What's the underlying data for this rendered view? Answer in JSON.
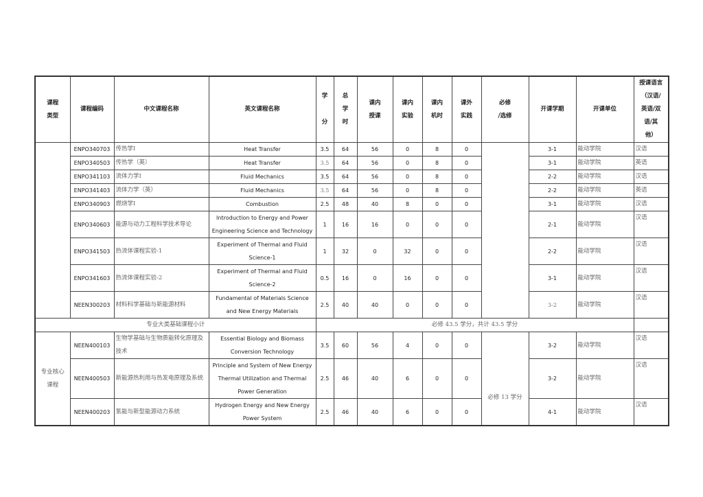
{
  "headers": {
    "type": [
      "课程",
      "类型"
    ],
    "code": "课程编码",
    "zh_name": "中文课程名称",
    "en_name": "英文课程名称",
    "credit": [
      "学",
      "分"
    ],
    "total_hours": [
      "总",
      "学",
      "时"
    ],
    "lecture": [
      "课内",
      "授课"
    ],
    "lab": [
      "课内",
      "实验"
    ],
    "computer": [
      "课内",
      "机时"
    ],
    "practice": [
      "课外",
      "实践"
    ],
    "required": [
      "必修",
      "/选修"
    ],
    "semester": "开课学期",
    "unit": "开课单位",
    "language": [
      "授课语言",
      "（汉语/",
      "英语/双",
      "语/其",
      "他）"
    ]
  },
  "groups": [
    {
      "type": "",
      "required": "",
      "rows": [
        {
          "code": "ENPO340703",
          "zh": "传热学Ⅰ",
          "en": "Heat Transfer",
          "credit": "3.5",
          "total": "64",
          "lecture": "56",
          "lab": "0",
          "computer": "8",
          "practice": "0",
          "semester": "3-1",
          "unit": "能动学院",
          "lang": "汉语"
        },
        {
          "code": "ENPO340503",
          "zh": "传热学（英）",
          "en": "Heat Transfer",
          "credit": "3.5",
          "total": "64",
          "lecture": "56",
          "lab": "0",
          "computer": "8",
          "practice": "0",
          "semester": "3-1",
          "unit": "能动学院",
          "lang": "英语"
        },
        {
          "code": "ENPO341103",
          "zh": "流体力学Ⅰ",
          "en": "Fluid Mechanics",
          "credit": "3.5",
          "total": "64",
          "lecture": "56",
          "lab": "0",
          "computer": "8",
          "practice": "0",
          "semester": "2-2",
          "unit": "能动学院",
          "lang": "汉语"
        },
        {
          "code": "ENPO341403",
          "zh": "流体力学（英）",
          "en": "Fluid Mechanics",
          "credit": "3.5",
          "total": "64",
          "lecture": "56",
          "lab": "0",
          "computer": "8",
          "practice": "0",
          "semester": "2-2",
          "unit": "能动学院",
          "lang": "英语"
        },
        {
          "code": "ENPO340903",
          "zh": "燃烧学Ⅰ",
          "en": "Combustion",
          "credit": "2.5",
          "total": "48",
          "lecture": "40",
          "lab": "8",
          "computer": "0",
          "practice": "0",
          "semester": "3-1",
          "unit": "能动学院",
          "lang": "汉语"
        },
        {
          "code": "ENPO340603",
          "zh": "能源与动力工程科学技术导论",
          "en": "Introduction to Energy and Power Engineering Science and Technology",
          "credit": "1",
          "total": "16",
          "lecture": "16",
          "lab": "0",
          "computer": "0",
          "practice": "0",
          "semester": "2-1",
          "unit": "能动学院",
          "lang": "汉语"
        },
        {
          "code": "ENPO341503",
          "zh": "热流体课程实验-1",
          "en": "Experiment of Thermal and Fluid Science-1",
          "credit": "1",
          "total": "32",
          "lecture": "0",
          "lab": "32",
          "computer": "0",
          "practice": "0",
          "semester": "2-2",
          "unit": "能动学院",
          "lang": "汉语"
        },
        {
          "code": "ENPO341603",
          "zh": "热流体课程实验-2",
          "en": "Experiment of Thermal and Fluid Science-2",
          "credit": "0.5",
          "total": "16",
          "lecture": "0",
          "lab": "16",
          "computer": "0",
          "practice": "0",
          "semester": "3-1",
          "unit": "能动学院",
          "lang": "汉语"
        },
        {
          "code": "NEEN300203",
          "zh": "材料科学基础与新能源材料",
          "en": "Fundamental of Materials Science and New Energy Materials",
          "credit": "2.5",
          "total": "40",
          "lecture": "40",
          "lab": "0",
          "computer": "0",
          "practice": "0",
          "semester": "3-2",
          "unit": "能动学院",
          "lang": "汉语"
        }
      ],
      "subtotal": {
        "label": "专业大类基础课程小计",
        "text": "必修 43.5 学分，共计 43.5 学分"
      }
    },
    {
      "type": "专业核心课程",
      "required": "必修 13 学分",
      "rows": [
        {
          "code": "NEEN400103",
          "zh": "生物学基础与生物质能转化原理及技术",
          "en": "Essential Biology and Biomass Conversion Technology",
          "credit": "3.5",
          "total": "60",
          "lecture": "56",
          "lab": "4",
          "computer": "0",
          "practice": "0",
          "semester": "3-2",
          "unit": "能动学院",
          "lang": "汉语"
        },
        {
          "code": "NEEN400503",
          "zh": "新能源热利用与热发电原理及系统",
          "en": "Principle and System of New Energy Thermal Utilization and Thermal Power Generation",
          "credit": "2.5",
          "total": "46",
          "lecture": "40",
          "lab": "6",
          "computer": "0",
          "practice": "0",
          "semester": "3-2",
          "unit": "能动学院",
          "lang": "汉语"
        },
        {
          "code": "NEEN400203",
          "zh": "氢能与新型能源动力系统",
          "en": "Hydrogen Energy and New Energy Power System",
          "credit": "2.5",
          "total": "46",
          "lecture": "40",
          "lab": "6",
          "computer": "0",
          "practice": "0",
          "semester": "4-1",
          "unit": "能动学院",
          "lang": "汉语"
        }
      ]
    }
  ]
}
